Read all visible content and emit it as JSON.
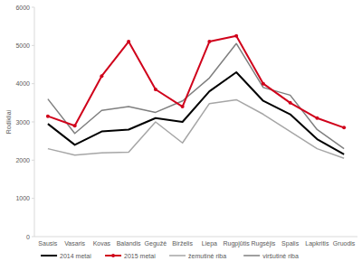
{
  "chart_data": {
    "type": "line",
    "y_label": "Rodikliai",
    "categories": [
      "Sausis",
      "Vasaris",
      "Kovas",
      "Balandis",
      "Gegužė",
      "Birželis",
      "Liepa",
      "Rugpjūtis",
      "Rugsėjis",
      "Spalis",
      "Lapkritis",
      "Gruodis"
    ],
    "series": [
      {
        "name": "2014 metai",
        "color": "#000000",
        "values": [
          2950,
          2400,
          2750,
          2800,
          3100,
          3000,
          3800,
          4300,
          3550,
          3200,
          2550,
          2150
        ]
      },
      {
        "name": "2015 metai",
        "color": "#d0021b",
        "marker": "circle",
        "values": [
          3150,
          2900,
          4200,
          5100,
          3850,
          3400,
          5100,
          5250,
          4000,
          3500,
          3100,
          2850
        ]
      },
      {
        "name": "žemutinė riba",
        "color": "#a6a6a6",
        "values": [
          2300,
          2130,
          2190,
          2210,
          3000,
          2450,
          3480,
          3580,
          3200,
          2750,
          2300,
          2050
        ]
      },
      {
        "name": "viršutinė riba",
        "color": "#7f7f7f",
        "values": [
          3600,
          2700,
          3300,
          3400,
          3250,
          3550,
          4150,
          5050,
          3900,
          3700,
          2800,
          2300
        ]
      }
    ],
    "ylim": [
      0,
      6000
    ],
    "yticks": [
      0,
      1000,
      2000,
      3000,
      4000,
      5000,
      6000
    ],
    "grid": false,
    "legend": "bottom"
  }
}
